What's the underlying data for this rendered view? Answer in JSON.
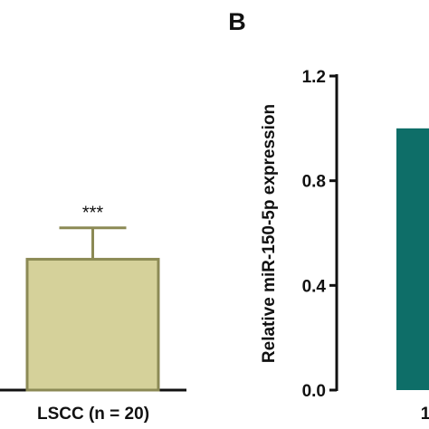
{
  "panel_b_letter": "B",
  "chart_data": [
    {
      "type": "bar",
      "panel": "A",
      "categories": [
        "LSCC (n = 20)"
      ],
      "values": [
        0.5
      ],
      "significance": [
        "***"
      ],
      "error_upper": [
        0.62
      ],
      "ylim": [
        0,
        1.2
      ],
      "colors": {
        "fill": "#d5d19a",
        "stroke": "#8c8a55"
      }
    },
    {
      "type": "bar",
      "panel": "B",
      "ylabel": "Relative miR-150-5p expression",
      "ylim": [
        0,
        1.2
      ],
      "yticks": [
        "0.0",
        "0.4",
        "0.8",
        "1.2"
      ],
      "categories": [
        "1"
      ],
      "values": [
        1.0
      ],
      "colors": {
        "fill": "#0e6e68"
      }
    }
  ]
}
